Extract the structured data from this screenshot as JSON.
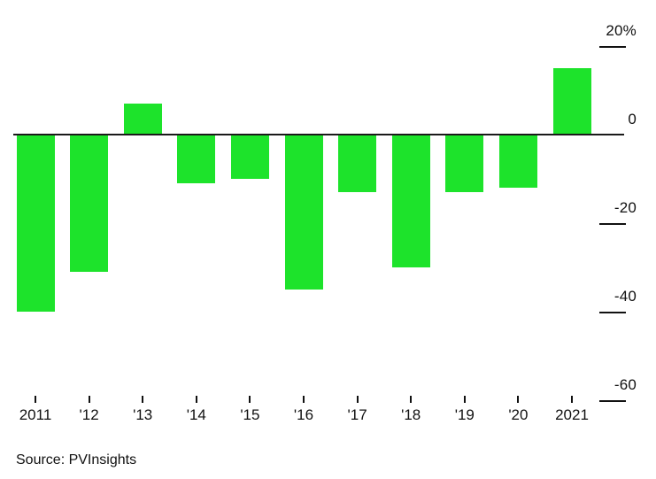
{
  "chart_data": {
    "type": "bar",
    "title": "",
    "categories": [
      "2011",
      "'12",
      "'13",
      "'14",
      "'15",
      "'16",
      "'17",
      "'18",
      "'19",
      "'20",
      "2021"
    ],
    "values": [
      -40,
      -31,
      7,
      -11,
      -10,
      -35,
      -13,
      -30,
      -13,
      -12,
      15
    ],
    "unit": "%",
    "xlabel": "",
    "ylabel": "",
    "ylim": [
      -60,
      20
    ],
    "y_ticks": [
      {
        "label": "20%",
        "value": 20
      },
      {
        "label": "0",
        "value": 0
      },
      {
        "label": "-20",
        "value": -20
      },
      {
        "label": "-40",
        "value": -40
      },
      {
        "label": "-60",
        "value": -60
      }
    ],
    "grid": false,
    "legend": "none"
  },
  "colors": {
    "bar": "#1de32b",
    "axis": "#1a1a1a",
    "tick": "#111111",
    "background": "#ffffff"
  },
  "source": {
    "label": "Source: PVInsights"
  }
}
